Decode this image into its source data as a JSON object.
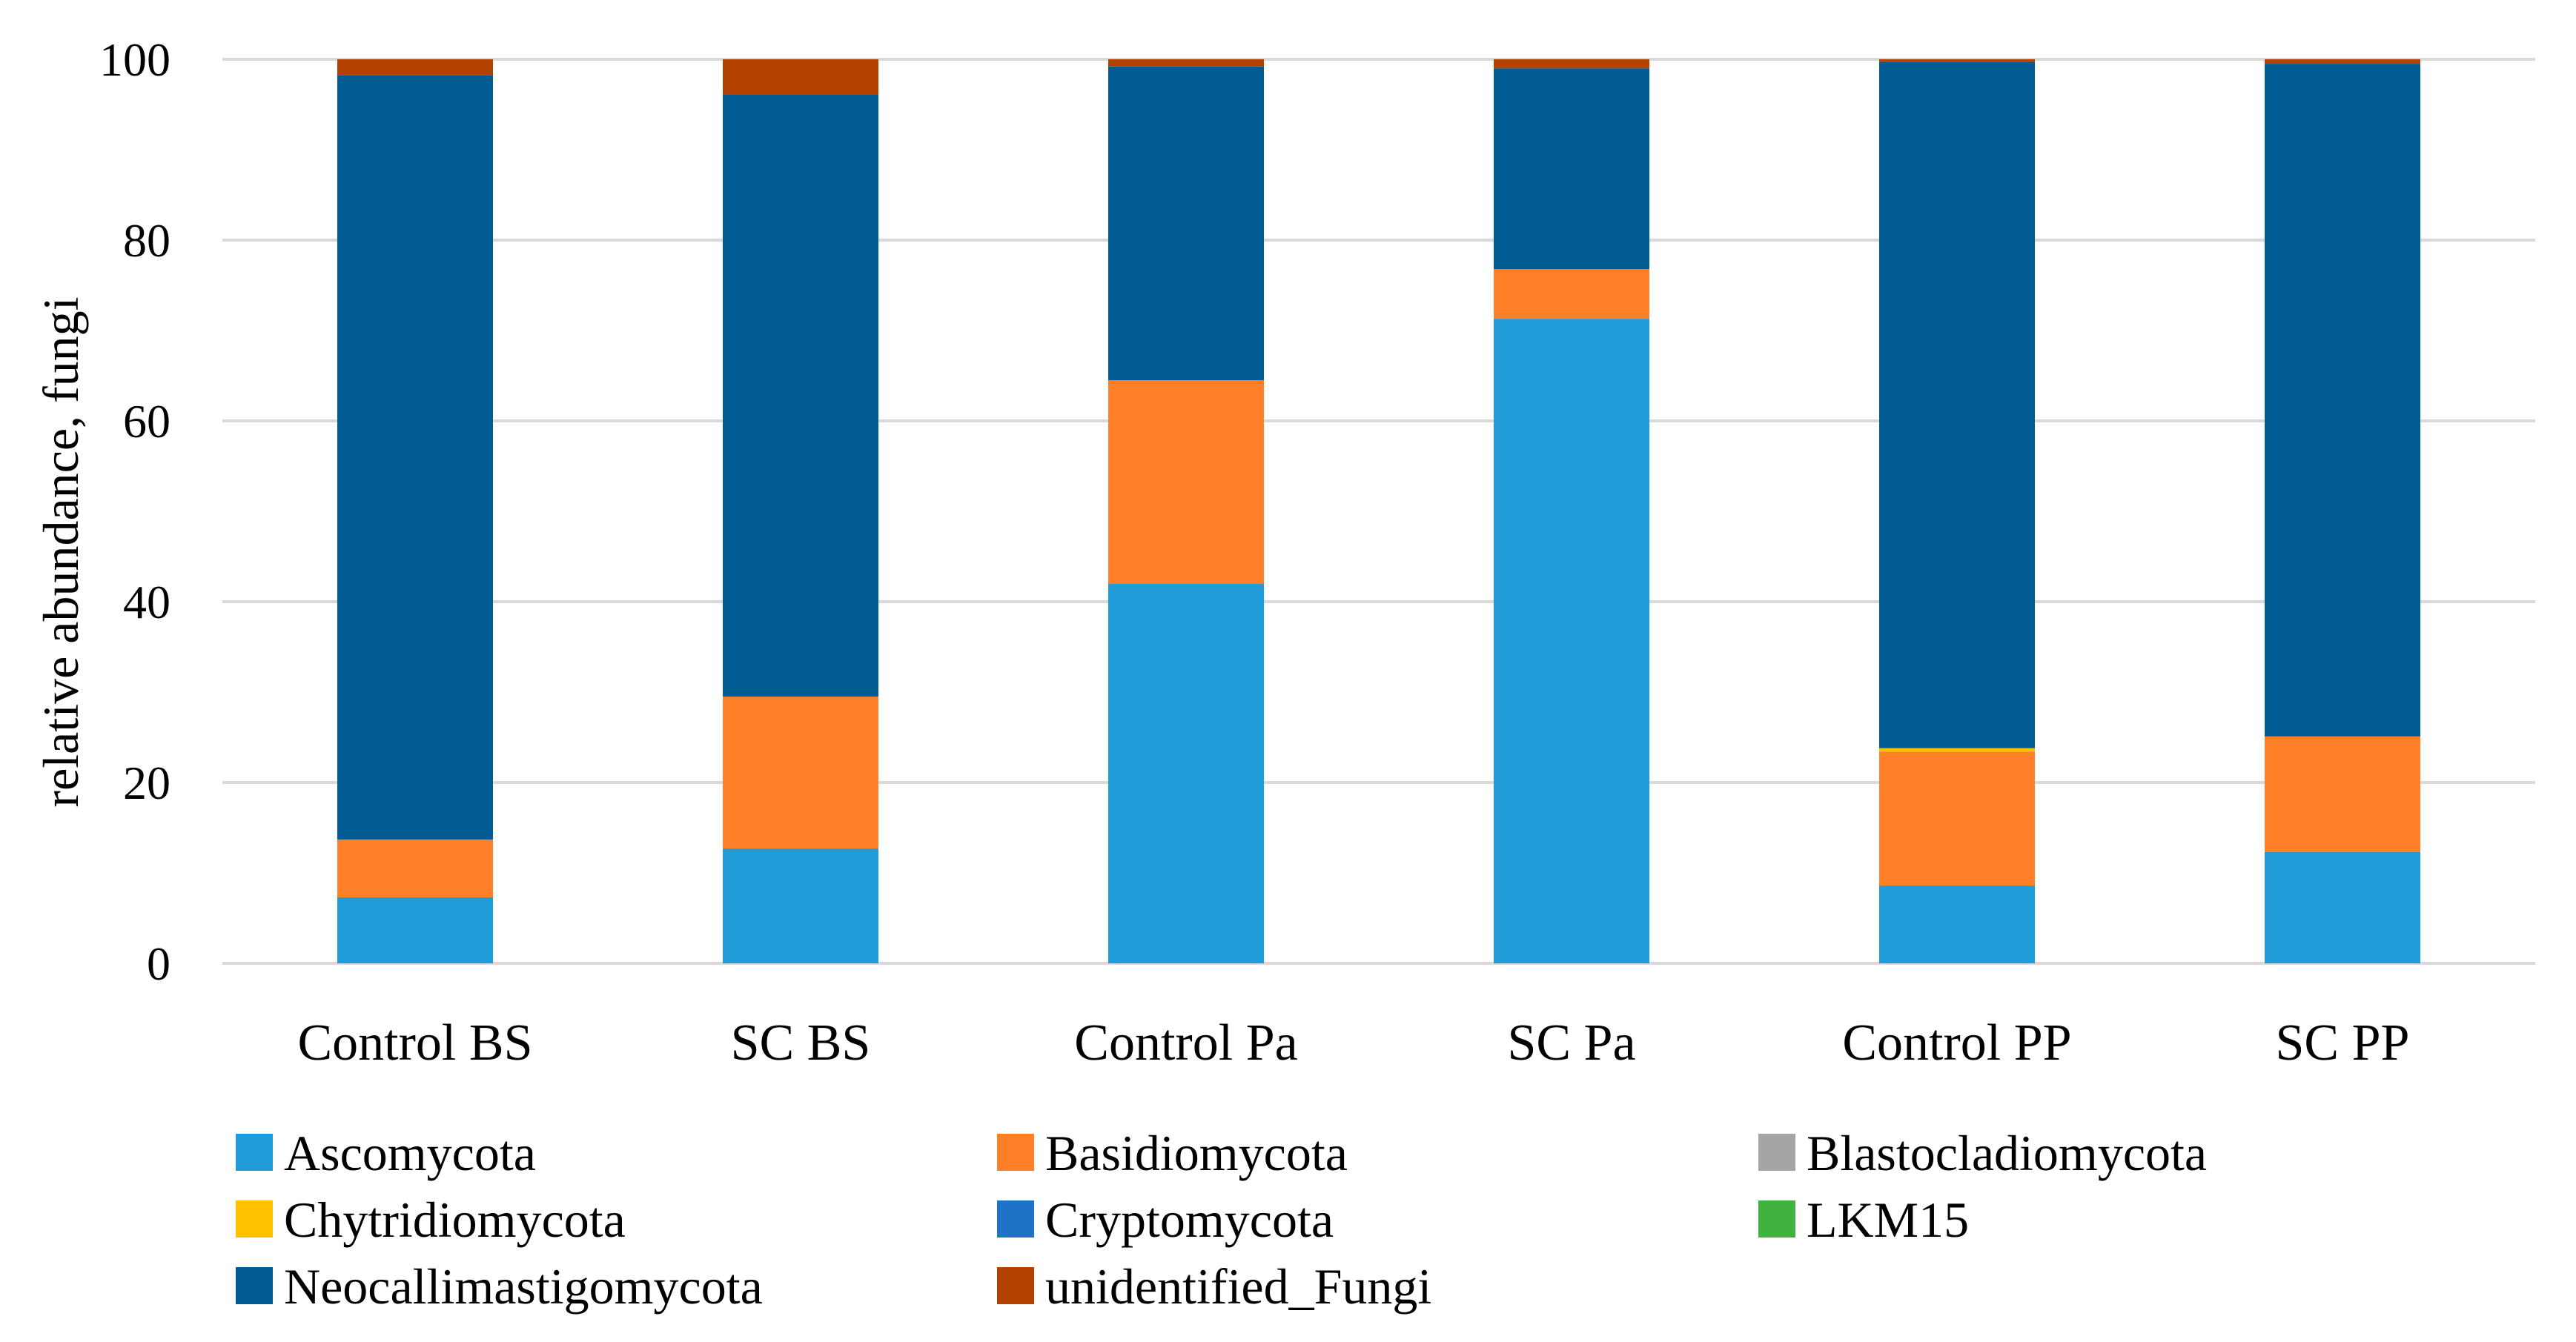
{
  "chart_data": {
    "type": "bar",
    "stacked": true,
    "title": "",
    "xlabel": "",
    "ylabel": "relative abundance, fungi",
    "ylim": [
      0,
      100
    ],
    "yticks": [
      0,
      20,
      40,
      60,
      80,
      100
    ],
    "grid": true,
    "legend_position": "bottom",
    "categories": [
      "Control BS",
      "SC BS",
      "Control Pa",
      "SC Pa",
      "Control PP",
      "SC PP"
    ],
    "series": [
      {
        "name": "Ascomycota",
        "color": "#1f9bd7",
        "values": [
          7.3,
          12.7,
          42.0,
          71.3,
          8.6,
          12.3
        ]
      },
      {
        "name": "Basidiomycota",
        "color": "#fe7f28",
        "values": [
          6.4,
          16.8,
          22.5,
          5.5,
          14.8,
          12.8
        ]
      },
      {
        "name": "Blastocladiomycota",
        "color": "#a5a5a5",
        "values": [
          0,
          0,
          0,
          0,
          0,
          0
        ]
      },
      {
        "name": "Chytridiomycota",
        "color": "#ffc000",
        "values": [
          0,
          0,
          0,
          0,
          0.4,
          0
        ]
      },
      {
        "name": "Cryptomycota",
        "color": "#1e73c8",
        "values": [
          0,
          0,
          0,
          0,
          0,
          0
        ]
      },
      {
        "name": "LKM15",
        "color": "#40b23f",
        "values": [
          0,
          0,
          0,
          0,
          0,
          0
        ]
      },
      {
        "name": "Neocallimastigomycota",
        "color": "#005c93",
        "values": [
          84.5,
          66.6,
          34.7,
          22.2,
          75.9,
          74.4
        ]
      },
      {
        "name": "unidentified_Fungi",
        "color": "#b34100",
        "values": [
          1.8,
          3.9,
          0.8,
          1.0,
          0.3,
          0.5
        ]
      }
    ]
  }
}
